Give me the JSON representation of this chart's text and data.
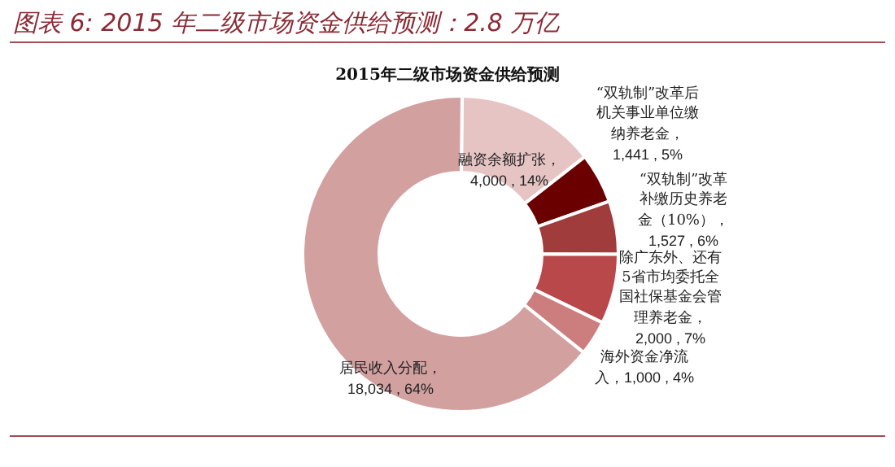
{
  "chart_data": {
    "type": "donut",
    "title": "图表 6: 2015 年二级市场资金供给预测：2.8 万亿",
    "subtitle": "2015年二级市场资金供给预测",
    "categories": [
      "融资余额扩张",
      "“双轨制”改革后机关事业单位缴纳养老金",
      "“双轨制”改革补缴历史养老金（10%）",
      "除广东外、还有5省市均委托全国社保基金会管理养老金",
      "海外资金净流入",
      "居民收入分配"
    ],
    "values": [
      4000,
      1441,
      1527,
      2000,
      1000,
      18034
    ],
    "value_labels": [
      "，4,000 , 14%",
      "，1,441 , 5%",
      "，1,527 , 6%",
      "，2,000 , 7%",
      "，1,000 , 4%",
      "，18,034 , 64%"
    ],
    "colors": [
      "#e6c4c4",
      "#6a0000",
      "#a03c3c",
      "#b8484a",
      "#cc7e7e",
      "#d3a0a0"
    ]
  }
}
